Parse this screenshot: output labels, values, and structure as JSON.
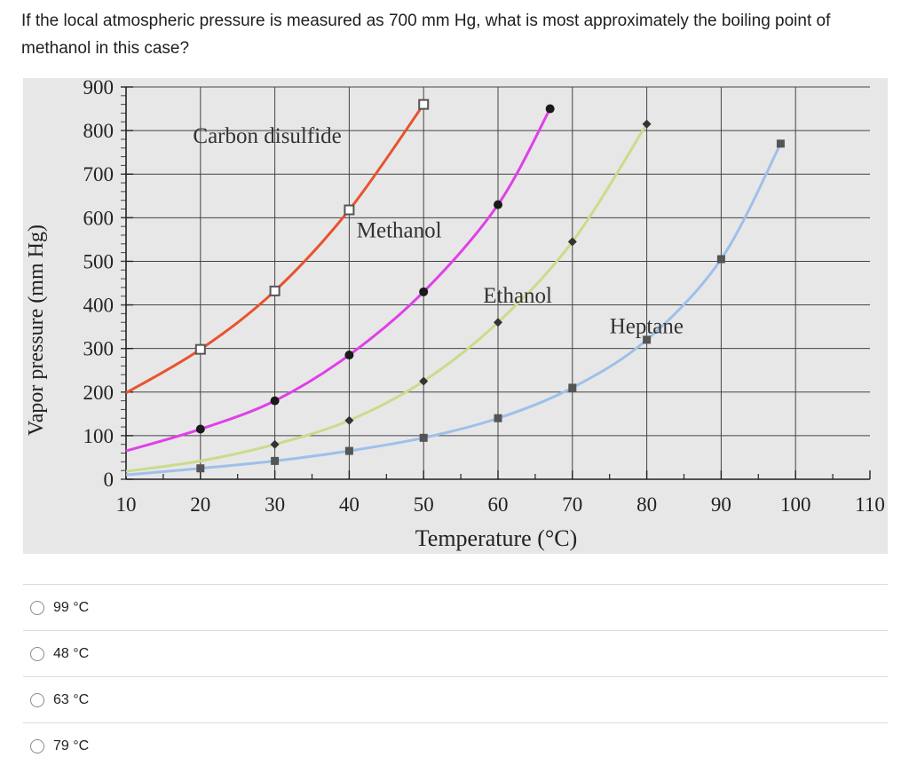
{
  "question": {
    "text": "If the local atmospheric pressure is measured as 700 mm Hg, what is most approximately the boiling point of methanol in this case?"
  },
  "chart_data": {
    "type": "line",
    "xlabel": "Temperature (°C)",
    "ylabel": "Vapor pressure (mm Hg)",
    "xlim": [
      10,
      110
    ],
    "ylim": [
      0,
      900
    ],
    "x_ticks": [
      10,
      20,
      30,
      40,
      50,
      60,
      70,
      80,
      90,
      100,
      110
    ],
    "y_ticks": [
      0,
      100,
      200,
      300,
      400,
      500,
      600,
      700,
      800,
      900
    ],
    "grid": true,
    "colors": {
      "background": "#e7e7e7",
      "grid": "#444444",
      "carbon_disulfide": "#e8532e",
      "methanol": "#e040e8",
      "ethanol": "#c9dc8a",
      "heptane": "#9ec0ea"
    },
    "series": [
      {
        "name": "Carbon disulfide",
        "color_key": "carbon_disulfide",
        "marker": "open-square",
        "x": [
          10,
          20,
          30,
          40,
          50
        ],
        "y": [
          198,
          298,
          432,
          618,
          860
        ],
        "marker_x": [
          20,
          30,
          40,
          50
        ],
        "label_pos": [
          19,
          772
        ]
      },
      {
        "name": "Methanol",
        "color_key": "methanol",
        "marker": "filled-circle",
        "x": [
          10,
          20,
          30,
          40,
          50,
          60,
          67
        ],
        "y": [
          65,
          115,
          180,
          285,
          430,
          630,
          850
        ],
        "marker_x": [
          20,
          30,
          40,
          50,
          60,
          67
        ],
        "label_pos": [
          41,
          555
        ]
      },
      {
        "name": "Ethanol",
        "color_key": "ethanol",
        "marker": "filled-diamond",
        "x": [
          10,
          20,
          30,
          40,
          50,
          60,
          70,
          80
        ],
        "y": [
          18,
          42,
          80,
          135,
          225,
          360,
          545,
          815
        ],
        "marker_x": [
          30,
          40,
          50,
          60,
          70,
          80
        ],
        "label_pos": [
          58,
          405
        ]
      },
      {
        "name": "Heptane",
        "color_key": "heptane",
        "marker": "filled-square",
        "x": [
          10,
          20,
          30,
          40,
          50,
          60,
          70,
          80,
          90,
          98
        ],
        "y": [
          10,
          25,
          42,
          65,
          95,
          140,
          210,
          320,
          505,
          770
        ],
        "marker_x": [
          20,
          30,
          40,
          50,
          60,
          70,
          80,
          90,
          98
        ],
        "label_pos": [
          75,
          335
        ]
      }
    ]
  },
  "options": [
    {
      "label": "99 °C"
    },
    {
      "label": "48 °C"
    },
    {
      "label": "63 °C"
    },
    {
      "label": "79 °C"
    }
  ]
}
